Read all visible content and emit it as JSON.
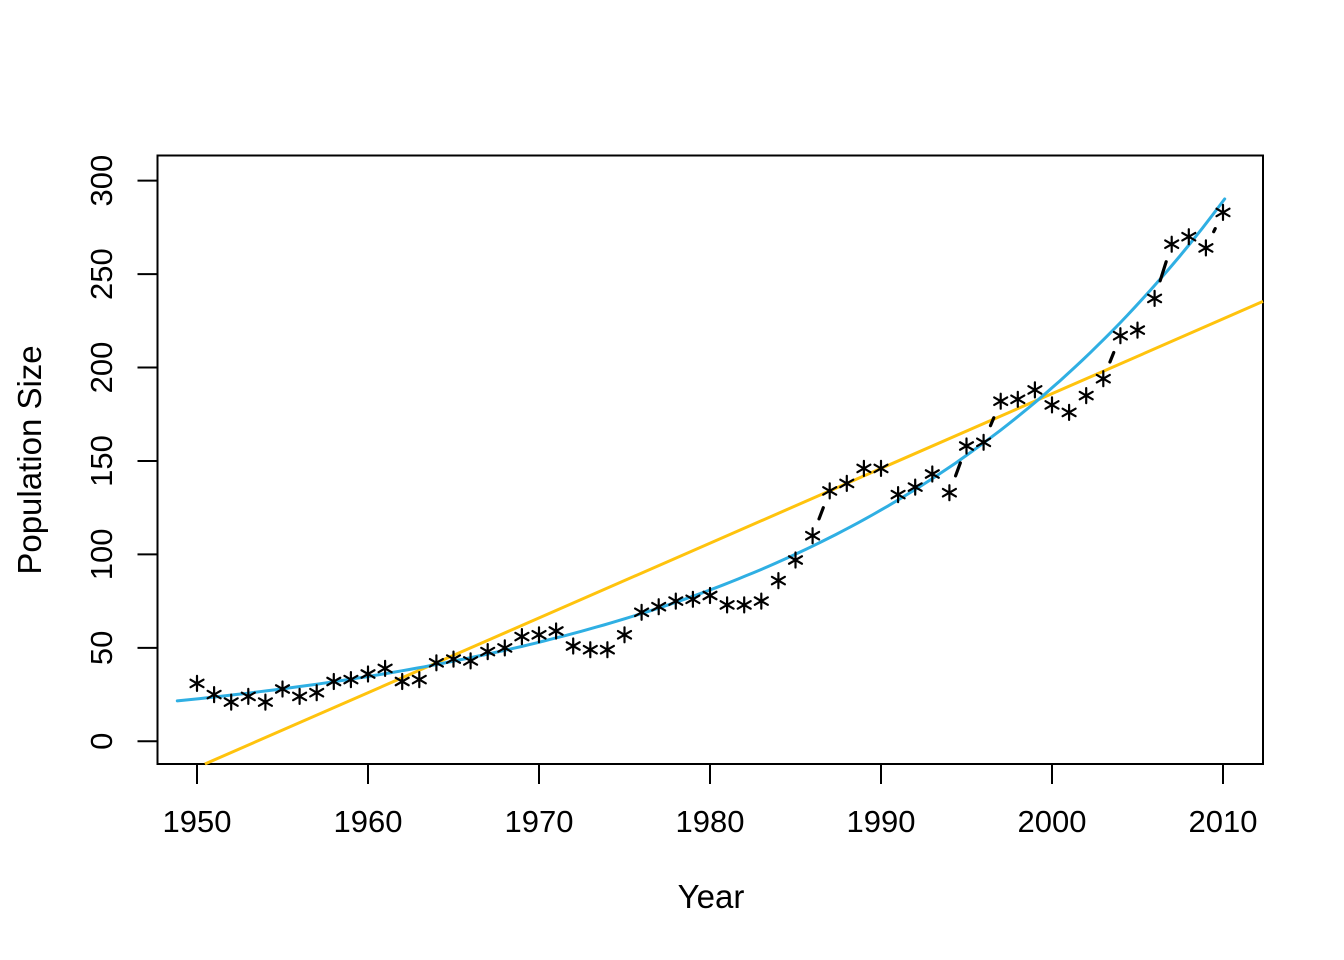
{
  "chart_data": {
    "type": "scatter",
    "title": "",
    "xlabel": "Year",
    "ylabel": "Population Size",
    "x_ticks": [
      1950,
      1960,
      1970,
      1980,
      1990,
      2000,
      2010
    ],
    "y_ticks": [
      0,
      50,
      100,
      150,
      200,
      250,
      300
    ],
    "xlim": [
      1947.7,
      2012.3
    ],
    "ylim": [
      -12.2,
      313.4
    ],
    "grid": false,
    "legend": "none",
    "colors": {
      "points": "#000000",
      "exponential_fit": "#2fafe3",
      "linear_fit": "#ffc30d"
    },
    "series": [
      {
        "name": "observed-population",
        "type": "scatter",
        "marker": "asterisk",
        "connector": "dashed",
        "color": "#000000",
        "x": [
          1950,
          1951,
          1952,
          1953,
          1954,
          1955,
          1956,
          1957,
          1958,
          1959,
          1960,
          1961,
          1962,
          1963,
          1964,
          1965,
          1966,
          1967,
          1968,
          1969,
          1970,
          1971,
          1972,
          1973,
          1974,
          1975,
          1976,
          1977,
          1978,
          1979,
          1980,
          1981,
          1982,
          1983,
          1984,
          1985,
          1986,
          1987,
          1988,
          1989,
          1990,
          1991,
          1992,
          1993,
          1994,
          1995,
          1996,
          1997,
          1998,
          1999,
          2000,
          2001,
          2002,
          2003,
          2004,
          2005,
          2006,
          2007,
          2008,
          2009,
          2010
        ],
        "values": [
          31,
          25,
          21,
          24,
          21,
          28,
          24,
          26,
          32,
          33,
          36,
          39,
          32,
          33,
          42,
          44,
          43,
          48,
          50,
          56,
          57,
          59,
          51,
          49,
          49,
          57,
          69,
          72,
          75,
          76,
          78,
          73,
          73,
          75,
          86,
          97,
          110,
          134,
          138,
          146,
          146,
          132,
          136,
          143,
          133,
          158,
          160,
          182,
          183,
          188,
          180,
          176,
          185,
          194,
          217,
          220,
          237,
          266,
          270,
          264,
          283
        ]
      },
      {
        "name": "exponential-fit",
        "type": "curve",
        "color": "#2fafe3",
        "model": "N = 22.7 * exp(0.0424 * (year - 1950))",
        "a": 22.7,
        "r": 0.0424,
        "x_range": [
          1948.85,
          2010.1
        ]
      },
      {
        "name": "linear-fit",
        "type": "line",
        "color": "#ffc30d",
        "model": "N = -14 + 4.0 * (year - 1950)",
        "slope": 4.0,
        "intercept_at_1950": -14,
        "x_range": [
          1950.46,
          2012.34
        ]
      }
    ]
  }
}
